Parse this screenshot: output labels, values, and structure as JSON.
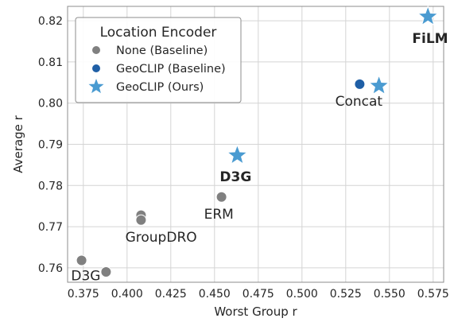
{
  "chart_data": {
    "type": "scatter",
    "xlabel": "Worst Group r",
    "ylabel": "Average r",
    "xlim": [
      0.366,
      0.581
    ],
    "ylim": [
      0.7565,
      0.8235
    ],
    "x_ticks": [
      0.375,
      0.4,
      0.425,
      0.45,
      0.475,
      0.5,
      0.525,
      0.55,
      0.575
    ],
    "x_tick_labels": [
      "0.375",
      "0.400",
      "0.425",
      "0.450",
      "0.475",
      "0.500",
      "0.525",
      "0.550",
      "0.575"
    ],
    "y_ticks": [
      0.76,
      0.77,
      0.78,
      0.79,
      0.8,
      0.81,
      0.82
    ],
    "y_tick_labels": [
      "0.76",
      "0.77",
      "0.78",
      "0.79",
      "0.80",
      "0.81",
      "0.82"
    ],
    "grid": true,
    "legend": {
      "title": "Location Encoder",
      "placement": "top-left",
      "entries": [
        {
          "label": "None (Baseline)",
          "marker": "circle",
          "color": "#808080"
        },
        {
          "label": "GeoCLIP (Baseline)",
          "marker": "circle",
          "color": "#1f5fa6"
        },
        {
          "label": "GeoCLIP (Ours)",
          "marker": "star",
          "color": "#4a9bd1"
        }
      ]
    },
    "series": [
      {
        "name": "None (Baseline)",
        "marker": "circle",
        "color": "#808080",
        "points": [
          {
            "x": 0.374,
            "y": 0.7618
          },
          {
            "x": 0.388,
            "y": 0.759
          },
          {
            "x": 0.408,
            "y": 0.7728
          },
          {
            "x": 0.408,
            "y": 0.7716
          },
          {
            "x": 0.454,
            "y": 0.7772
          }
        ]
      },
      {
        "name": "GeoCLIP (Baseline)",
        "marker": "circle",
        "color": "#1f5fa6",
        "points": [
          {
            "x": 0.533,
            "y": 0.8046
          }
        ]
      },
      {
        "name": "GeoCLIP (Ours)",
        "marker": "star",
        "color": "#4a9bd1",
        "points": [
          {
            "x": 0.463,
            "y": 0.7873
          },
          {
            "x": 0.544,
            "y": 0.8042
          },
          {
            "x": 0.572,
            "y": 0.821
          }
        ]
      }
    ],
    "annotations": [
      {
        "text": "D3G",
        "x": 0.368,
        "y": 0.757,
        "bold": false
      },
      {
        "text": "GroupDRO",
        "x": 0.399,
        "y": 0.7663,
        "bold": false
      },
      {
        "text": "ERM",
        "x": 0.444,
        "y": 0.7719,
        "bold": false
      },
      {
        "text": "D3G",
        "x": 0.453,
        "y": 0.781,
        "bold": true
      },
      {
        "text": "Concat",
        "x": 0.519,
        "y": 0.7994,
        "bold": false
      },
      {
        "text": "FiLM",
        "x": 0.563,
        "y": 0.8146,
        "bold": true
      }
    ]
  }
}
